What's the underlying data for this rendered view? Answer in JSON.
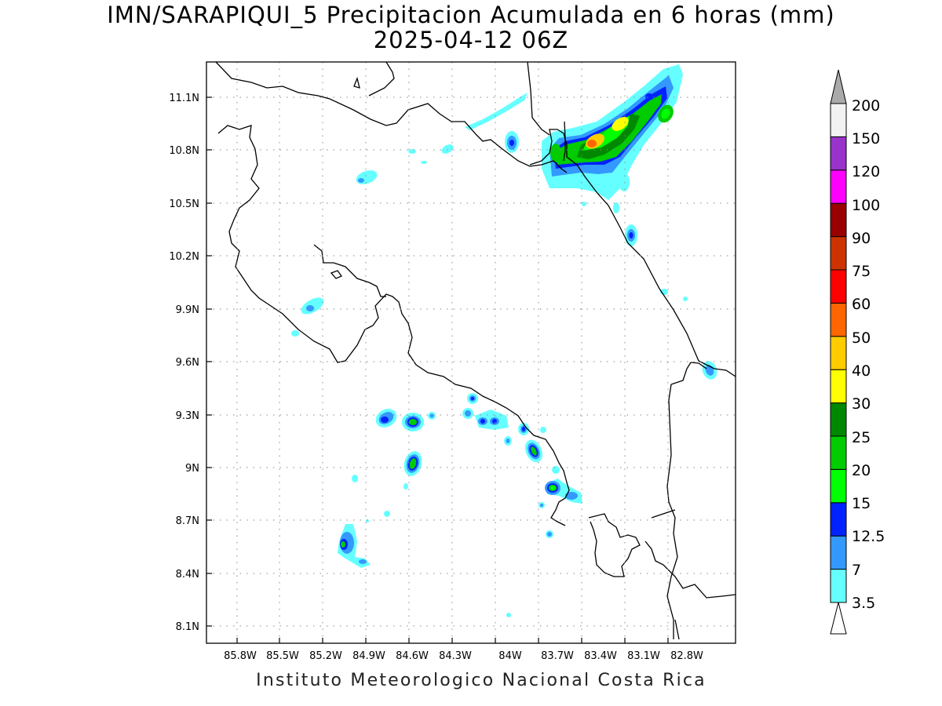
{
  "title": {
    "line1": "IMN/SARAPIQUI_5 Precipitacion Acumulada en 6 horas (mm)",
    "line2": "2025-04-12 06Z"
  },
  "footer": "Instituto Meteorologico Nacional Costa Rica",
  "map": {
    "lon_ticks": [
      "85.8W",
      "85.5W",
      "85.2W",
      "84.9W",
      "84.6W",
      "84.3W",
      "84W",
      "83.7W",
      "83.4W",
      "83.1W",
      "82.8W"
    ],
    "lat_ticks": [
      "11.1N",
      "10.8N",
      "10.5N",
      "10.2N",
      "9.9N",
      "9.6N",
      "9.3N",
      "9N",
      "8.7N",
      "8.4N",
      "8.1N"
    ],
    "grid": true
  },
  "colorbar": {
    "levels": [
      "3.5",
      "7",
      "12.5",
      "15",
      "20",
      "25",
      "30",
      "40",
      "50",
      "60",
      "75",
      "90",
      "100",
      "120",
      "150",
      "200"
    ],
    "colors": [
      "#66ffff",
      "#3399ff",
      "#0022ff",
      "#00ff00",
      "#00cc00",
      "#008800",
      "#ffff00",
      "#ffcc00",
      "#ff6600",
      "#ff0000",
      "#cc3300",
      "#990000",
      "#ff00ff",
      "#9933cc",
      "#f2f2f2",
      "#aaaaaa"
    ],
    "under_color": "#ffffff"
  },
  "precip_cells": [
    {
      "lon": -83.3,
      "lat": 10.85,
      "mm": 40
    },
    {
      "lon": -83.18,
      "lat": 10.93,
      "mm": 30
    },
    {
      "lon": -83.72,
      "lat": 10.8,
      "mm": 20
    },
    {
      "lon": -83.0,
      "lat": 11.0,
      "mm": 20
    },
    {
      "lon": -84.0,
      "lat": 10.84,
      "mm": 12.5
    },
    {
      "lon": -83.14,
      "lat": 10.32,
      "mm": 12.5
    },
    {
      "lon": -84.86,
      "lat": 9.28,
      "mm": 12.5
    },
    {
      "lon": -84.64,
      "lat": 9.25,
      "mm": 20
    },
    {
      "lon": -84.62,
      "lat": 9.02,
      "mm": 20
    },
    {
      "lon": -84.26,
      "lat": 9.39,
      "mm": 12.5
    },
    {
      "lon": -83.82,
      "lat": 9.21,
      "mm": 15
    },
    {
      "lon": -83.79,
      "lat": 9.1,
      "mm": 20
    },
    {
      "lon": -83.71,
      "lat": 8.88,
      "mm": 25
    },
    {
      "lon": -85.09,
      "lat": 8.57,
      "mm": 15
    },
    {
      "lon": -85.27,
      "lat": 9.92,
      "mm": 7
    },
    {
      "lon": -82.68,
      "lat": 9.56,
      "mm": 7
    }
  ]
}
